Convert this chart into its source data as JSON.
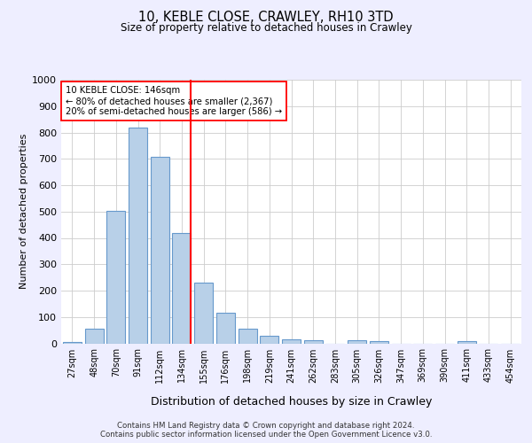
{
  "title1": "10, KEBLE CLOSE, CRAWLEY, RH10 3TD",
  "title2": "Size of property relative to detached houses in Crawley",
  "xlabel": "Distribution of detached houses by size in Crawley",
  "ylabel": "Number of detached properties",
  "categories": [
    "27sqm",
    "48sqm",
    "70sqm",
    "91sqm",
    "112sqm",
    "134sqm",
    "155sqm",
    "176sqm",
    "198sqm",
    "219sqm",
    "241sqm",
    "262sqm",
    "283sqm",
    "305sqm",
    "326sqm",
    "347sqm",
    "369sqm",
    "390sqm",
    "411sqm",
    "433sqm",
    "454sqm"
  ],
  "values": [
    5,
    57,
    503,
    820,
    708,
    417,
    230,
    115,
    55,
    30,
    15,
    13,
    0,
    12,
    8,
    0,
    0,
    0,
    10,
    0,
    0
  ],
  "bar_color": "#b8d0e8",
  "bar_edge_color": "#6699cc",
  "annotation_title": "10 KEBLE CLOSE: 146sqm",
  "annotation_line1": "← 80% of detached houses are smaller (2,367)",
  "annotation_line2": "20% of semi-detached houses are larger (586) →",
  "footer1": "Contains HM Land Registry data © Crown copyright and database right 2024.",
  "footer2": "Contains public sector information licensed under the Open Government Licence v3.0.",
  "ylim": [
    0,
    1000
  ],
  "yticks": [
    0,
    100,
    200,
    300,
    400,
    500,
    600,
    700,
    800,
    900,
    1000
  ],
  "background_color": "#eeeeff",
  "plot_bg_color": "#ffffff"
}
